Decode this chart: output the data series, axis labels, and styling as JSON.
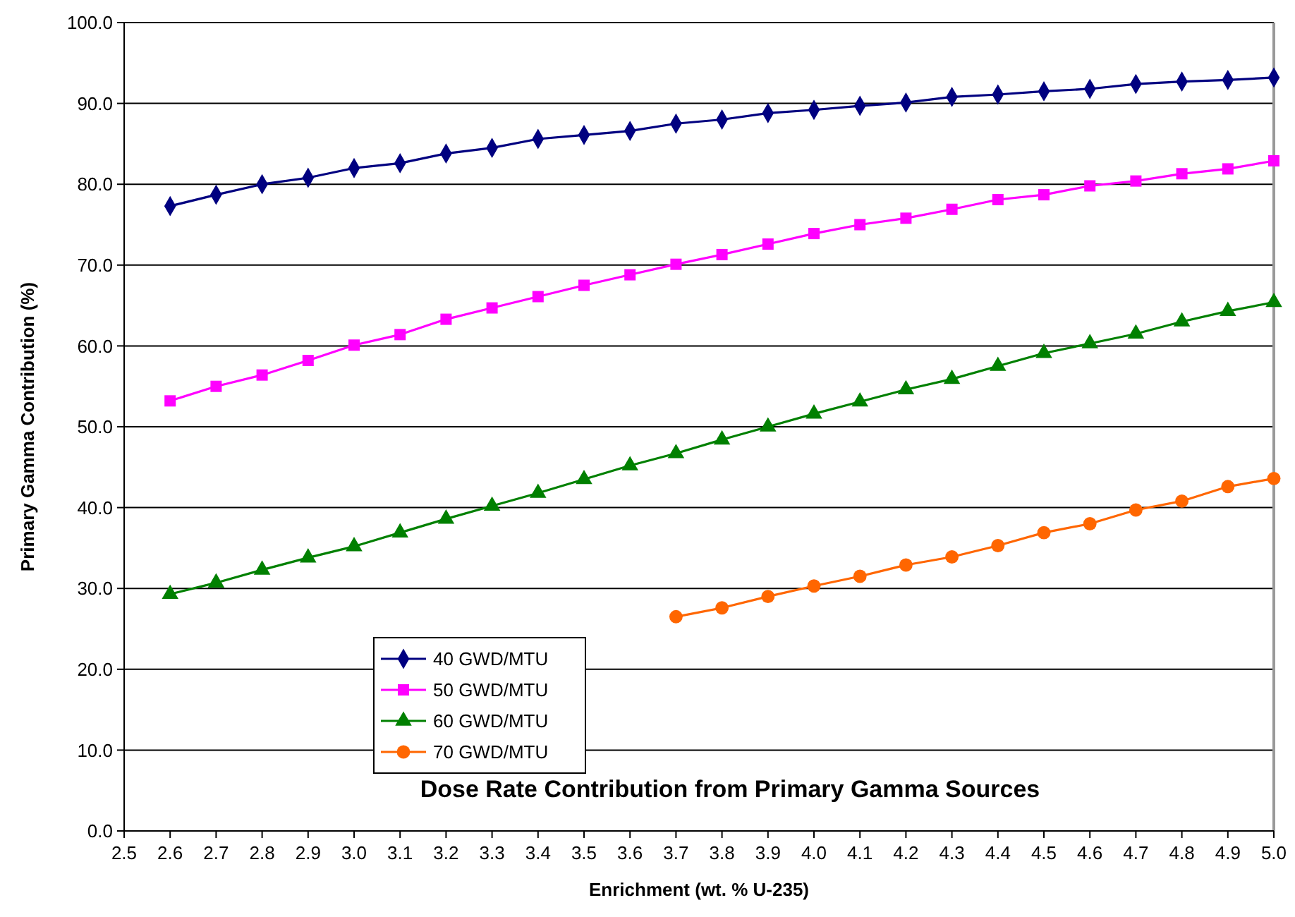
{
  "chart_data": {
    "type": "line",
    "title": "Dose Rate Contribution from Primary Gamma Sources",
    "xlabel": "Enrichment (wt. % U-235)",
    "ylabel": "Primary Gamma Contribution (%)",
    "x": [
      2.6,
      2.7,
      2.8,
      2.9,
      3.0,
      3.1,
      3.2,
      3.3,
      3.4,
      3.5,
      3.6,
      3.7,
      3.8,
      3.9,
      4.0,
      4.1,
      4.2,
      4.3,
      4.4,
      4.5,
      4.6,
      4.7,
      4.8,
      4.9,
      5.0
    ],
    "xlim": [
      2.5,
      5.0
    ],
    "xticks": [
      2.5,
      2.6,
      2.7,
      2.8,
      2.9,
      {
        "value": 3.0,
        "label": "3.0"
      },
      3.1,
      3.2,
      3.3,
      3.4,
      3.5,
      3.6,
      3.7,
      3.8,
      3.9,
      {
        "value": 4.0,
        "label": "4.0"
      },
      4.1,
      4.2,
      4.3,
      4.4,
      4.5,
      4.6,
      4.7,
      4.8,
      4.9,
      {
        "value": 5.0,
        "label": "5.0"
      }
    ],
    "ylim": [
      0,
      100
    ],
    "yticks": [
      {
        "value": 0,
        "label": "0.0"
      },
      {
        "value": 10,
        "label": "10.0"
      },
      {
        "value": 20,
        "label": "20.0"
      },
      {
        "value": 30,
        "label": "30.0"
      },
      {
        "value": 40,
        "label": "40.0"
      },
      {
        "value": 50,
        "label": "50.0"
      },
      {
        "value": 60,
        "label": "60.0"
      },
      {
        "value": 70,
        "label": "70.0"
      },
      {
        "value": 80,
        "label": "80.0"
      },
      {
        "value": 90,
        "label": "90.0"
      },
      {
        "value": 100,
        "label": "100.0"
      }
    ],
    "grid": "y",
    "legend": "bottom left",
    "line_style": "solid",
    "series": [
      {
        "name": "40 GWD/MTU",
        "color": "#000080",
        "marker": "diamond",
        "values": [
          77.3,
          78.7,
          80.0,
          80.8,
          82.0,
          82.6,
          83.8,
          84.5,
          85.6,
          86.1,
          86.6,
          87.5,
          88.0,
          88.8,
          89.2,
          89.7,
          90.1,
          90.8,
          91.1,
          91.5,
          91.8,
          92.4,
          92.7,
          92.9,
          93.2
        ]
      },
      {
        "name": "50 GWD/MTU",
        "color": "#ff00ff",
        "marker": "square",
        "values": [
          53.2,
          55.0,
          56.4,
          58.2,
          60.1,
          61.4,
          63.3,
          64.7,
          66.1,
          67.5,
          68.8,
          70.1,
          71.3,
          72.6,
          73.9,
          75.0,
          75.8,
          76.9,
          78.1,
          78.7,
          79.8,
          80.4,
          81.3,
          81.9,
          82.9
        ]
      },
      {
        "name": "60 GWD/MTU",
        "color": "#008000",
        "marker": "triangle",
        "values": [
          29.3,
          30.7,
          32.3,
          33.8,
          35.2,
          36.9,
          38.6,
          40.2,
          41.8,
          43.5,
          45.2,
          46.7,
          48.4,
          50.0,
          51.6,
          53.1,
          54.6,
          55.9,
          57.5,
          59.1,
          60.3,
          61.5,
          63.0,
          64.3,
          65.4
        ]
      },
      {
        "name": "70 GWD/MTU",
        "color": "#ff6600",
        "marker": "circle",
        "x": [
          3.7,
          3.8,
          3.9,
          4.0,
          4.1,
          4.2,
          4.3,
          4.4,
          4.5,
          4.6,
          4.7,
          4.8,
          4.9,
          5.0
        ],
        "values": [
          26.5,
          27.6,
          29.0,
          30.3,
          31.5,
          32.9,
          33.9,
          35.3,
          36.9,
          38.0,
          39.7,
          40.8,
          42.6,
          43.6
        ]
      }
    ]
  }
}
